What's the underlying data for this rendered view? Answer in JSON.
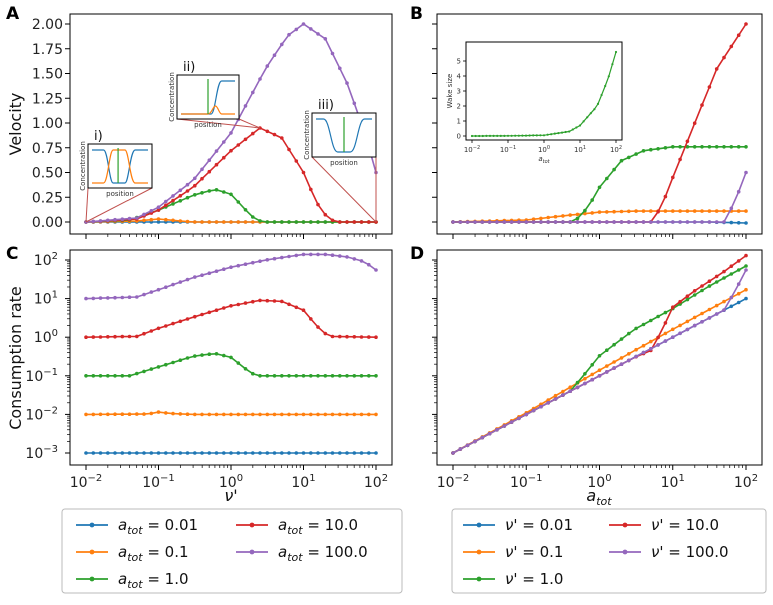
{
  "colors": {
    "blue": "#1f77b4",
    "orange": "#ff7f0e",
    "green": "#2ca02c",
    "red": "#d62728",
    "purple": "#9467bd",
    "link": "#c0504d"
  },
  "panels": {
    "A": "A",
    "B": "B",
    "C": "C",
    "D": "D"
  },
  "insets": {
    "i": {
      "label": "i)",
      "ylabel": "Concentration",
      "xlabel": "position"
    },
    "ii": {
      "label": "ii)",
      "ylabel": "Concentration",
      "xlabel": "position"
    },
    "iii": {
      "label": "iii)",
      "ylabel": "Concentration",
      "xlabel": "position"
    }
  },
  "legend_left": [
    {
      "sym": "a",
      "sub": "tot",
      "value": " = 0.01",
      "color": "#1f77b4"
    },
    {
      "sym": "a",
      "sub": "tot",
      "value": " = 0.1",
      "color": "#ff7f0e"
    },
    {
      "sym": "a",
      "sub": "tot",
      "value": " = 1.0",
      "color": "#2ca02c"
    },
    {
      "sym": "a",
      "sub": "tot",
      "value": " = 10.0",
      "color": "#d62728"
    },
    {
      "sym": "a",
      "sub": "tot",
      "value": " = 100.0",
      "color": "#9467bd"
    }
  ],
  "legend_right": [
    {
      "sym": "ν'",
      "sub": "",
      "value": " = 0.01",
      "color": "#1f77b4"
    },
    {
      "sym": "ν'",
      "sub": "",
      "value": " = 0.1",
      "color": "#ff7f0e"
    },
    {
      "sym": "ν'",
      "sub": "",
      "value": " = 1.0",
      "color": "#2ca02c"
    },
    {
      "sym": "ν'",
      "sub": "",
      "value": " = 10.0",
      "color": "#d62728"
    },
    {
      "sym": "ν'",
      "sub": "",
      "value": " = 100.0",
      "color": "#9467bd"
    }
  ],
  "chart_data": [
    {
      "id": "A",
      "type": "line",
      "xscale": "log",
      "xlim": [
        0.01,
        100
      ],
      "ylabel": "Velocity",
      "ylim": [
        0,
        2.0
      ],
      "yticks": [
        "0.00",
        "0.25",
        "0.50",
        "0.75",
        "1.00",
        "1.25",
        "1.50",
        "1.75",
        "2.00"
      ],
      "series": [
        {
          "name": "a_tot = 0.01",
          "color": "#1f77b4",
          "points": [
            [
              0.01,
              0
            ],
            [
              100,
              0
            ]
          ]
        },
        {
          "name": "a_tot = 0.1",
          "color": "#ff7f0e",
          "points": [
            [
              0.01,
              0
            ],
            [
              0.05,
              0.01
            ],
            [
              0.1,
              0.03
            ],
            [
              0.2,
              0.01
            ],
            [
              0.3,
              0
            ],
            [
              100,
              0
            ]
          ]
        },
        {
          "name": "a_tot = 1.0",
          "color": "#2ca02c",
          "points": [
            [
              0.01,
              0
            ],
            [
              0.04,
              0.02
            ],
            [
              0.1,
              0.12
            ],
            [
              0.3,
              0.27
            ],
            [
              0.6,
              0.33
            ],
            [
              1.0,
              0.28
            ],
            [
              1.6,
              0.12
            ],
            [
              2.2,
              0.02
            ],
            [
              3,
              0
            ],
            [
              100,
              0
            ]
          ]
        },
        {
          "name": "a_tot = 10.0",
          "color": "#d62728",
          "points": [
            [
              0.01,
              0
            ],
            [
              0.05,
              0.03
            ],
            [
              0.1,
              0.12
            ],
            [
              0.3,
              0.35
            ],
            [
              1.0,
              0.72
            ],
            [
              2.5,
              0.95
            ],
            [
              5,
              0.85
            ],
            [
              10,
              0.5
            ],
            [
              15,
              0.2
            ],
            [
              22,
              0.03
            ],
            [
              30,
              0
            ],
            [
              100,
              0
            ]
          ]
        },
        {
          "name": "a_tot = 100.0",
          "color": "#9467bd",
          "points": [
            [
              0.01,
              0
            ],
            [
              0.05,
              0.04
            ],
            [
              0.1,
              0.15
            ],
            [
              0.3,
              0.42
            ],
            [
              1.0,
              0.9
            ],
            [
              3,
              1.55
            ],
            [
              6,
              1.88
            ],
            [
              10,
              2.0
            ],
            [
              20,
              1.85
            ],
            [
              40,
              1.4
            ],
            [
              70,
              0.9
            ],
            [
              100,
              0.5
            ]
          ]
        }
      ]
    },
    {
      "id": "B",
      "type": "line",
      "xscale": "log",
      "xlim": [
        0.01,
        100
      ],
      "ylim": [
        0,
        2.0
      ],
      "series": [
        {
          "name": "nu' = 0.01",
          "color": "#1f77b4",
          "points": [
            [
              0.01,
              0
            ],
            [
              30,
              0
            ],
            [
              100,
              -0.01
            ]
          ]
        },
        {
          "name": "nu' = 0.1",
          "color": "#ff7f0e",
          "points": [
            [
              0.01,
              0
            ],
            [
              0.1,
              0.02
            ],
            [
              0.3,
              0.06
            ],
            [
              1,
              0.1
            ],
            [
              3,
              0.11
            ],
            [
              100,
              0.11
            ]
          ]
        },
        {
          "name": "nu' = 1.0",
          "color": "#2ca02c",
          "points": [
            [
              0.01,
              0
            ],
            [
              0.45,
              0
            ],
            [
              0.7,
              0.15
            ],
            [
              1,
              0.35
            ],
            [
              2,
              0.62
            ],
            [
              4,
              0.72
            ],
            [
              10,
              0.76
            ],
            [
              100,
              0.76
            ]
          ]
        },
        {
          "name": "nu' = 10.0",
          "color": "#d62728",
          "points": [
            [
              0.01,
              0
            ],
            [
              5,
              0
            ],
            [
              7,
              0.15
            ],
            [
              10,
              0.45
            ],
            [
              20,
              1.0
            ],
            [
              40,
              1.55
            ],
            [
              100,
              2.0
            ]
          ]
        },
        {
          "name": "nu' = 100.0",
          "color": "#9467bd",
          "points": [
            [
              0.01,
              0
            ],
            [
              50,
              0
            ],
            [
              70,
              0.2
            ],
            [
              100,
              0.5
            ]
          ]
        }
      ],
      "inset": {
        "type": "line",
        "xscale": "log",
        "xlabel": "a_tot",
        "ylabel": "Wake size",
        "ylim": [
          0,
          5
        ],
        "yticks": [
          "0",
          "1",
          "2",
          "3",
          "4",
          "5"
        ],
        "points": [
          [
            0.01,
            0
          ],
          [
            0.1,
            0.01
          ],
          [
            1,
            0.05
          ],
          [
            5,
            0.3
          ],
          [
            10,
            0.7
          ],
          [
            30,
            2.0
          ],
          [
            60,
            3.8
          ],
          [
            100,
            5.6
          ]
        ]
      }
    },
    {
      "id": "C",
      "type": "line",
      "xscale": "log",
      "yscale": "log",
      "xlabel": "ν'",
      "ylabel": "Consumption rate",
      "xlim": [
        0.01,
        100
      ],
      "ylim": [
        0.001,
        100
      ],
      "series": [
        {
          "name": "a_tot = 0.01",
          "color": "#1f77b4",
          "points": [
            [
              0.01,
              0.001
            ],
            [
              100,
              0.001
            ]
          ]
        },
        {
          "name": "a_tot = 0.1",
          "color": "#ff7f0e",
          "points": [
            [
              0.01,
              0.01
            ],
            [
              0.07,
              0.0102
            ],
            [
              0.1,
              0.0115
            ],
            [
              0.15,
              0.0105
            ],
            [
              0.3,
              0.01
            ],
            [
              100,
              0.01
            ]
          ]
        },
        {
          "name": "a_tot = 1.0",
          "color": "#2ca02c",
          "points": [
            [
              0.01,
              0.1
            ],
            [
              0.04,
              0.1
            ],
            [
              0.1,
              0.17
            ],
            [
              0.3,
              0.32
            ],
            [
              0.6,
              0.38
            ],
            [
              1.0,
              0.3
            ],
            [
              1.6,
              0.15
            ],
            [
              2.2,
              0.1
            ],
            [
              100,
              0.1
            ]
          ]
        },
        {
          "name": "a_tot = 10.0",
          "color": "#d62728",
          "points": [
            [
              0.01,
              1
            ],
            [
              0.05,
              1.05
            ],
            [
              0.1,
              1.7
            ],
            [
              0.3,
              3.3
            ],
            [
              1,
              6.5
            ],
            [
              2.5,
              9
            ],
            [
              5,
              8.5
            ],
            [
              10,
              5
            ],
            [
              15,
              2
            ],
            [
              22,
              1.05
            ],
            [
              100,
              1
            ]
          ]
        },
        {
          "name": "a_tot = 100.0",
          "color": "#9467bd",
          "points": [
            [
              0.01,
              10
            ],
            [
              0.05,
              11
            ],
            [
              0.1,
              17
            ],
            [
              0.3,
              35
            ],
            [
              1,
              65
            ],
            [
              3,
              100
            ],
            [
              10,
              140
            ],
            [
              20,
              140
            ],
            [
              40,
              120
            ],
            [
              70,
              90
            ],
            [
              100,
              55
            ]
          ]
        }
      ]
    },
    {
      "id": "D",
      "type": "line",
      "xscale": "log",
      "yscale": "log",
      "xlabel": "a_tot",
      "xlim": [
        0.01,
        100
      ],
      "ylim": [
        0.001,
        100
      ],
      "series": [
        {
          "name": "nu' = 0.01",
          "color": "#1f77b4",
          "points": [
            [
              0.01,
              0.001
            ],
            [
              100,
              10
            ]
          ]
        },
        {
          "name": "nu' = 0.1",
          "color": "#ff7f0e",
          "points": [
            [
              0.01,
              0.001
            ],
            [
              0.1,
              0.011
            ],
            [
              1,
              0.14
            ],
            [
              10,
              1.6
            ],
            [
              100,
              17
            ]
          ]
        },
        {
          "name": "nu' = 1.0",
          "color": "#2ca02c",
          "points": [
            [
              0.01,
              0.001
            ],
            [
              0.1,
              0.01
            ],
            [
              0.4,
              0.04
            ],
            [
              0.6,
              0.1
            ],
            [
              1,
              0.33
            ],
            [
              3,
              1.6
            ],
            [
              10,
              5.5
            ],
            [
              30,
              20
            ],
            [
              100,
              70
            ]
          ]
        },
        {
          "name": "nu' = 10.0",
          "color": "#d62728",
          "points": [
            [
              0.01,
              0.001
            ],
            [
              3,
              0.3
            ],
            [
              5,
              0.45
            ],
            [
              7,
              1.4
            ],
            [
              10,
              6
            ],
            [
              20,
              16
            ],
            [
              50,
              50
            ],
            [
              100,
              130
            ]
          ]
        },
        {
          "name": "nu' = 100.0",
          "color": "#9467bd",
          "points": [
            [
              0.01,
              0.001
            ],
            [
              50,
              5
            ],
            [
              70,
              15
            ],
            [
              100,
              55
            ]
          ]
        }
      ]
    }
  ]
}
